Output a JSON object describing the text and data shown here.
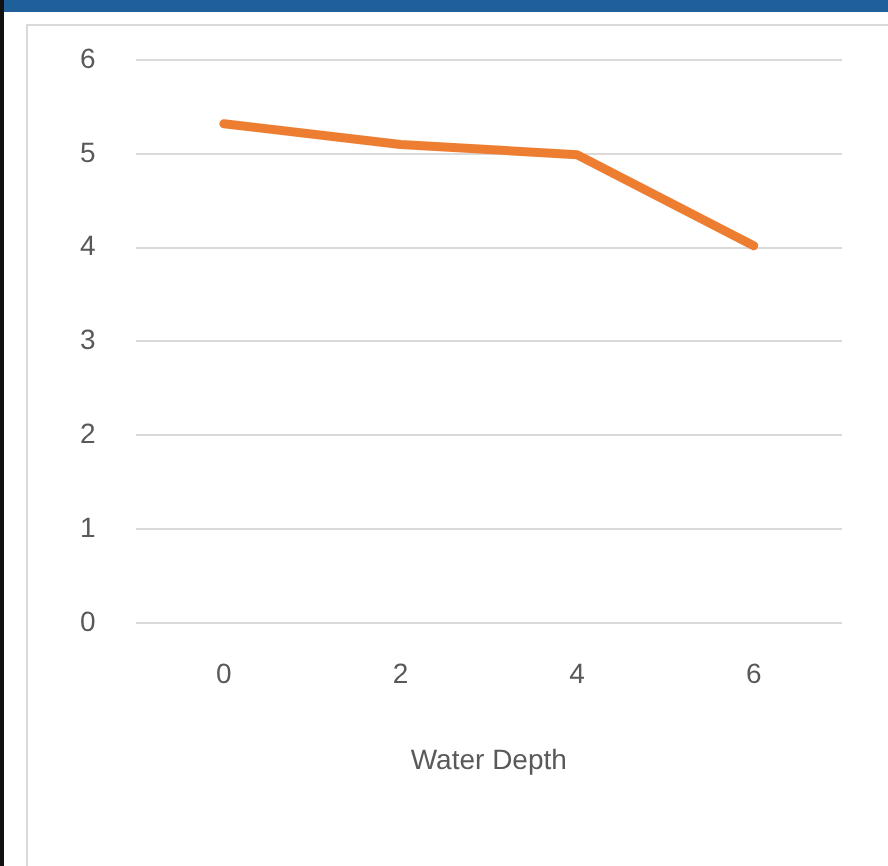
{
  "chart_data": {
    "type": "line",
    "xlabel": "Water Depth",
    "categories": [
      "0",
      "2",
      "4",
      "6"
    ],
    "series": [
      {
        "color": "#ed7d31",
        "values": [
          5.32,
          5.1,
          4.99,
          4.02
        ]
      }
    ],
    "ylim": [
      0,
      6
    ],
    "yticks": [
      0,
      1,
      2,
      3,
      4,
      5,
      6
    ],
    "grid": "y",
    "legend": false,
    "marker": "none",
    "line_style": "solid"
  }
}
